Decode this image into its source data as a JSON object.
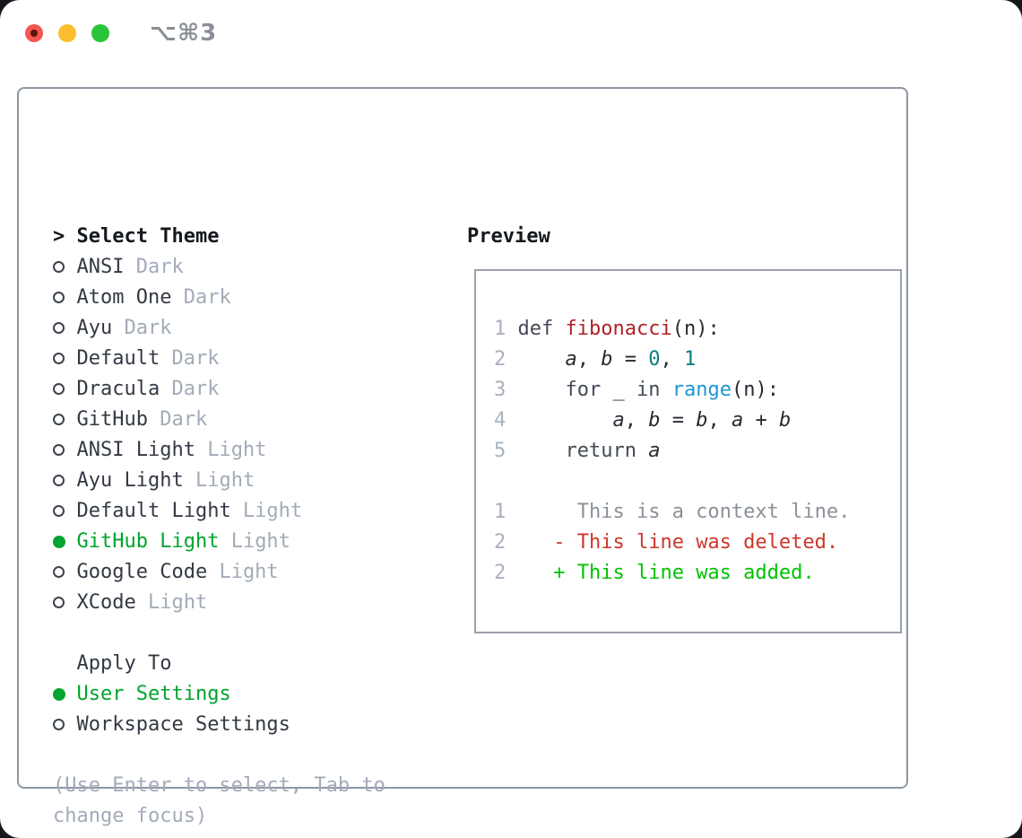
{
  "window": {
    "title": "⌥⌘3"
  },
  "colors": {
    "accent_green": "#00a42f",
    "diff_add": "#00c300",
    "diff_del": "#cd372a",
    "diff_context": "#8b9199",
    "code_function": "#b02126",
    "code_number": "#0c7d82",
    "code_builtin": "#1d96d2",
    "code_keyword": "#434a56",
    "code_plain": "#262b33",
    "text_dark": "#333944",
    "text_header": "#15191e",
    "text_muted": "#a2abb8",
    "gutter_gray": "#a8b1bf",
    "border_gray": "#8d97a3",
    "preview_border": "#99a1ab",
    "tl_red": "#f4564f",
    "tl_yellow": "#fcbd30",
    "tl_green": "#29c43a",
    "title_gray": "#8a9096"
  },
  "theme_picker": {
    "header_prefix": ">",
    "header": "Select Theme",
    "items": [
      {
        "name": "ANSI",
        "variant": "Dark",
        "selected": false
      },
      {
        "name": "Atom One",
        "variant": "Dark",
        "selected": false
      },
      {
        "name": "Ayu",
        "variant": "Dark",
        "selected": false
      },
      {
        "name": "Default",
        "variant": "Dark",
        "selected": false
      },
      {
        "name": "Dracula",
        "variant": "Dark",
        "selected": false
      },
      {
        "name": "GitHub",
        "variant": "Dark",
        "selected": false
      },
      {
        "name": "ANSI Light",
        "variant": "Light",
        "selected": false
      },
      {
        "name": "Ayu Light",
        "variant": "Light",
        "selected": false
      },
      {
        "name": "Default Light",
        "variant": "Light",
        "selected": false
      },
      {
        "name": "GitHub Light",
        "variant": "Light",
        "selected": true
      },
      {
        "name": "Google Code",
        "variant": "Light",
        "selected": false
      },
      {
        "name": "XCode",
        "variant": "Light",
        "selected": false
      }
    ],
    "apply_to": {
      "header": "Apply To",
      "options": [
        {
          "name": "User Settings",
          "selected": true
        },
        {
          "name": "Workspace Settings",
          "selected": false
        }
      ]
    },
    "help_lines": [
      "(Use Enter to select, Tab to",
      "change focus)"
    ]
  },
  "preview": {
    "title": "Preview",
    "code_lines": [
      {
        "num": "1",
        "segments": [
          {
            "t": "def ",
            "c": "kw"
          },
          {
            "t": "fibonacci",
            "c": "fn"
          },
          {
            "t": "(n):",
            "c": "pl"
          }
        ]
      },
      {
        "num": "2",
        "segments": [
          {
            "t": "    ",
            "c": "pl"
          },
          {
            "t": "a",
            "c": "var"
          },
          {
            "t": ", ",
            "c": "pl"
          },
          {
            "t": "b",
            "c": "var"
          },
          {
            "t": " = ",
            "c": "pl"
          },
          {
            "t": "0",
            "c": "num"
          },
          {
            "t": ", ",
            "c": "pl"
          },
          {
            "t": "1",
            "c": "num"
          }
        ]
      },
      {
        "num": "3",
        "segments": [
          {
            "t": "    ",
            "c": "pl"
          },
          {
            "t": "for ",
            "c": "kw"
          },
          {
            "t": "_ ",
            "c": "pl"
          },
          {
            "t": "in ",
            "c": "kw"
          },
          {
            "t": "range",
            "c": "bi"
          },
          {
            "t": "(n):",
            "c": "pl"
          }
        ]
      },
      {
        "num": "4",
        "segments": [
          {
            "t": "        ",
            "c": "pl"
          },
          {
            "t": "a",
            "c": "var"
          },
          {
            "t": ", ",
            "c": "pl"
          },
          {
            "t": "b",
            "c": "var"
          },
          {
            "t": " = ",
            "c": "pl"
          },
          {
            "t": "b",
            "c": "var"
          },
          {
            "t": ", ",
            "c": "pl"
          },
          {
            "t": "a",
            "c": "var"
          },
          {
            "t": " + ",
            "c": "pl"
          },
          {
            "t": "b",
            "c": "var"
          }
        ]
      },
      {
        "num": "5",
        "segments": [
          {
            "t": "    ",
            "c": "pl"
          },
          {
            "t": "return ",
            "c": "kw"
          },
          {
            "t": "a",
            "c": "var"
          }
        ]
      }
    ],
    "diff_lines": [
      {
        "num": "1",
        "segments": [
          {
            "t": "     This is a context line.",
            "c": "ctx"
          }
        ]
      },
      {
        "num": "2",
        "segments": [
          {
            "t": "   ",
            "c": "pl"
          },
          {
            "t": "- This line was deleted.",
            "c": "del"
          }
        ]
      },
      {
        "num": "2",
        "segments": [
          {
            "t": "   ",
            "c": "pl"
          },
          {
            "t": "+ This line was added.",
            "c": "add"
          }
        ]
      }
    ]
  }
}
